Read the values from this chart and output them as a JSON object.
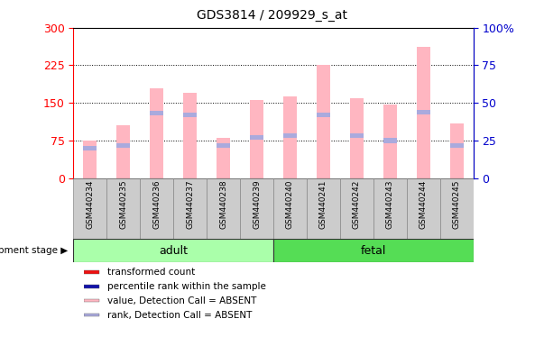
{
  "title": "GDS3814 / 209929_s_at",
  "samples": [
    "GSM440234",
    "GSM440235",
    "GSM440236",
    "GSM440237",
    "GSM440238",
    "GSM440239",
    "GSM440240",
    "GSM440241",
    "GSM440242",
    "GSM440243",
    "GSM440244",
    "GSM440245"
  ],
  "transformed_count": [
    75,
    105,
    180,
    170,
    80,
    155,
    163,
    225,
    160,
    147,
    262,
    110
  ],
  "percentile_rank": [
    20,
    22,
    43,
    42,
    22,
    27,
    28,
    42,
    28,
    25,
    44,
    22
  ],
  "bar_color_pink": "#FFB6C1",
  "bar_color_blue": "#AAAADD",
  "left_ylim": [
    0,
    300
  ],
  "right_ylim": [
    0,
    100
  ],
  "left_yticks": [
    0,
    75,
    150,
    225,
    300
  ],
  "right_yticks": [
    0,
    25,
    50,
    75,
    100
  ],
  "left_tick_color": "#FF0000",
  "right_tick_color": "#0000CC",
  "adult_samples": 6,
  "fetal_samples": 6,
  "adult_label": "adult",
  "fetal_label": "fetal",
  "stage_label": "development stage",
  "adult_color": "#AAFFAA",
  "fetal_color": "#55DD55",
  "group_box_color": "#CCCCCC",
  "legend_colors": [
    "#EE1111",
    "#1111AA",
    "#FFB6C1",
    "#AAAADD"
  ],
  "legend_labels": [
    "transformed count",
    "percentile rank within the sample",
    "value, Detection Call = ABSENT",
    "rank, Detection Call = ABSENT"
  ],
  "bg_color": "#FFFFFF",
  "bar_width": 0.4
}
